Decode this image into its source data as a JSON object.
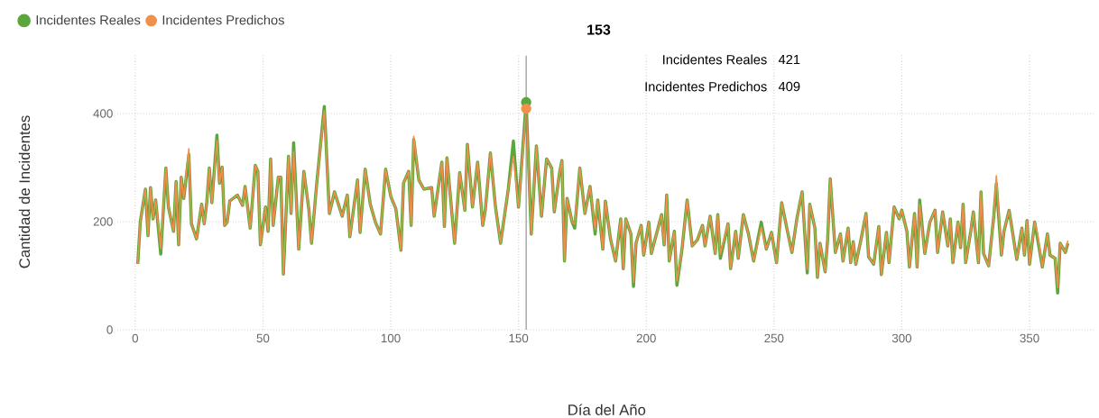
{
  "chart_data": {
    "type": "line",
    "xlabel": "Día del Año",
    "ylabel": "Cantidad de Incidentes",
    "xlim": [
      -7,
      376
    ],
    "ylim": [
      0,
      510
    ],
    "xticks": [
      0,
      50,
      100,
      150,
      200,
      250,
      300,
      350
    ],
    "yticks": [
      0,
      200,
      400
    ],
    "grid": true,
    "legend": "top left",
    "x": [
      1,
      2,
      4,
      5,
      6,
      7,
      8,
      10,
      12,
      13,
      15,
      16,
      17,
      18,
      19,
      21,
      22,
      24,
      26,
      27,
      28,
      29,
      30,
      32,
      33,
      34,
      35,
      36,
      37,
      40,
      42,
      43,
      45,
      47,
      48,
      49,
      51,
      52,
      53,
      54,
      56,
      57,
      58,
      60,
      61,
      62,
      64,
      66,
      68,
      69,
      71,
      74,
      76,
      78,
      81,
      83,
      84,
      87,
      88,
      90,
      92,
      94,
      96,
      98,
      100,
      102,
      104,
      105,
      107,
      108,
      109,
      111,
      113,
      116,
      117,
      120,
      121,
      122,
      125,
      127,
      129,
      130,
      132,
      134,
      136,
      137,
      139,
      141,
      143,
      146,
      148,
      150,
      153,
      155,
      157,
      159,
      161,
      163,
      164,
      166,
      167,
      168,
      169,
      171,
      172,
      174,
      176,
      178,
      180,
      181,
      183,
      184,
      186,
      188,
      190,
      191,
      192,
      194,
      195,
      196,
      198,
      199,
      201,
      202,
      204,
      206,
      207,
      208,
      209,
      211,
      212,
      214,
      216,
      218,
      220,
      222,
      223,
      225,
      227,
      228,
      229,
      232,
      233,
      235,
      236,
      238,
      240,
      242,
      245,
      247,
      249,
      251,
      253,
      255,
      257,
      259,
      261,
      263,
      264,
      266,
      267,
      268,
      270,
      271,
      272,
      274,
      276,
      277,
      279,
      280,
      281,
      282,
      284,
      286,
      287,
      289,
      291,
      292,
      294,
      295,
      297,
      299,
      300,
      302,
      303,
      305,
      306,
      307,
      309,
      311,
      313,
      314,
      316,
      318,
      319,
      320,
      322,
      323,
      324,
      325,
      327,
      328,
      330,
      331,
      332,
      334,
      336,
      337,
      339,
      340,
      342,
      345,
      347,
      348,
      349,
      350,
      352,
      353,
      355,
      357,
      358,
      360,
      361,
      362,
      364,
      365
    ],
    "series": [
      {
        "name": "Incidentes Reales",
        "color": "#5ba63d",
        "values": [
          122,
          200,
          260,
          174,
          263,
          205,
          240,
          140,
          299,
          227,
          182,
          274,
          157,
          282,
          243,
          324,
          196,
          168,
          232,
          196,
          235,
          299,
          235,
          360,
          271,
          301,
          193,
          199,
          238,
          249,
          230,
          265,
          188,
          304,
          293,
          157,
          227,
          182,
          316,
          193,
          282,
          282,
          103,
          321,
          215,
          346,
          149,
          293,
          221,
          160,
          268,
          413,
          215,
          255,
          210,
          249,
          172,
          277,
          180,
          297,
          232,
          199,
          177,
          297,
          247,
          224,
          147,
          271,
          293,
          193,
          352,
          277,
          260,
          263,
          210,
          310,
          191,
          318,
          160,
          291,
          221,
          343,
          227,
          310,
          193,
          221,
          327,
          227,
          160,
          260,
          349,
          227,
          421,
          177,
          340,
          210,
          316,
          299,
          218,
          288,
          313,
          127,
          243,
          199,
          188,
          299,
          215,
          265,
          177,
          240,
          149,
          238,
          168,
          127,
          205,
          113,
          205,
          177,
          80,
          160,
          193,
          138,
          199,
          141,
          177,
          213,
          157,
          249,
          127,
          182,
          82,
          149,
          240,
          155,
          166,
          193,
          155,
          210,
          141,
          213,
          132,
          196,
          113,
          182,
          132,
          213,
          177,
          127,
          199,
          149,
          180,
          124,
          235,
          188,
          143,
          207,
          255,
          105,
          232,
          188,
          97,
          160,
          107,
          168,
          279,
          143,
          177,
          127,
          188,
          124,
          163,
          121,
          166,
          215,
          135,
          121,
          191,
          102,
          180,
          124,
          227,
          205,
          221,
          182,
          116,
          215,
          116,
          240,
          141,
          199,
          221,
          143,
          218,
          155,
          205,
          124,
          199,
          152,
          232,
          124,
          182,
          218,
          124,
          255,
          141,
          118,
          210,
          270,
          138,
          182,
          221,
          130,
          188,
          138,
          202,
          121,
          199,
          172,
          116,
          177,
          138,
          132,
          68,
          160,
          143,
          160
        ]
      },
      {
        "name": "Incidentes Predichos",
        "color": "#f0904a",
        "values": [
          122,
          200,
          260,
          174,
          263,
          205,
          240,
          150,
          299,
          227,
          182,
          274,
          157,
          282,
          243,
          335,
          196,
          168,
          232,
          196,
          235,
          299,
          235,
          350,
          271,
          301,
          193,
          199,
          238,
          249,
          230,
          265,
          188,
          304,
          293,
          157,
          227,
          182,
          316,
          193,
          282,
          282,
          103,
          321,
          215,
          330,
          149,
          293,
          221,
          160,
          268,
          405,
          215,
          255,
          210,
          249,
          172,
          277,
          180,
          297,
          232,
          199,
          177,
          297,
          247,
          224,
          147,
          271,
          293,
          193,
          358,
          277,
          260,
          263,
          210,
          310,
          191,
          318,
          160,
          291,
          221,
          343,
          227,
          310,
          193,
          221,
          327,
          227,
          160,
          260,
          320,
          227,
          409,
          177,
          340,
          210,
          316,
          299,
          218,
          288,
          313,
          127,
          243,
          199,
          195,
          299,
          215,
          265,
          185,
          240,
          149,
          238,
          168,
          127,
          205,
          113,
          205,
          177,
          88,
          160,
          193,
          138,
          199,
          141,
          177,
          213,
          157,
          249,
          127,
          182,
          90,
          149,
          240,
          155,
          166,
          193,
          155,
          210,
          141,
          213,
          140,
          196,
          113,
          182,
          132,
          213,
          177,
          127,
          190,
          149,
          180,
          124,
          235,
          188,
          143,
          207,
          255,
          112,
          232,
          188,
          97,
          160,
          107,
          168,
          279,
          143,
          177,
          127,
          188,
          124,
          163,
          121,
          166,
          215,
          135,
          121,
          191,
          102,
          180,
          124,
          227,
          205,
          221,
          182,
          116,
          215,
          116,
          232,
          141,
          199,
          221,
          143,
          218,
          155,
          205,
          124,
          199,
          152,
          232,
          124,
          182,
          218,
          124,
          255,
          141,
          118,
          210,
          285,
          138,
          182,
          221,
          130,
          188,
          138,
          202,
          121,
          199,
          180,
          116,
          177,
          138,
          132,
          78,
          160,
          143,
          165
        ]
      }
    ],
    "ref_lines": [
      {
        "axis": "x",
        "value": 153,
        "color": "#888888"
      }
    ],
    "annotations": [
      "153",
      "421",
      "409"
    ]
  }
}
